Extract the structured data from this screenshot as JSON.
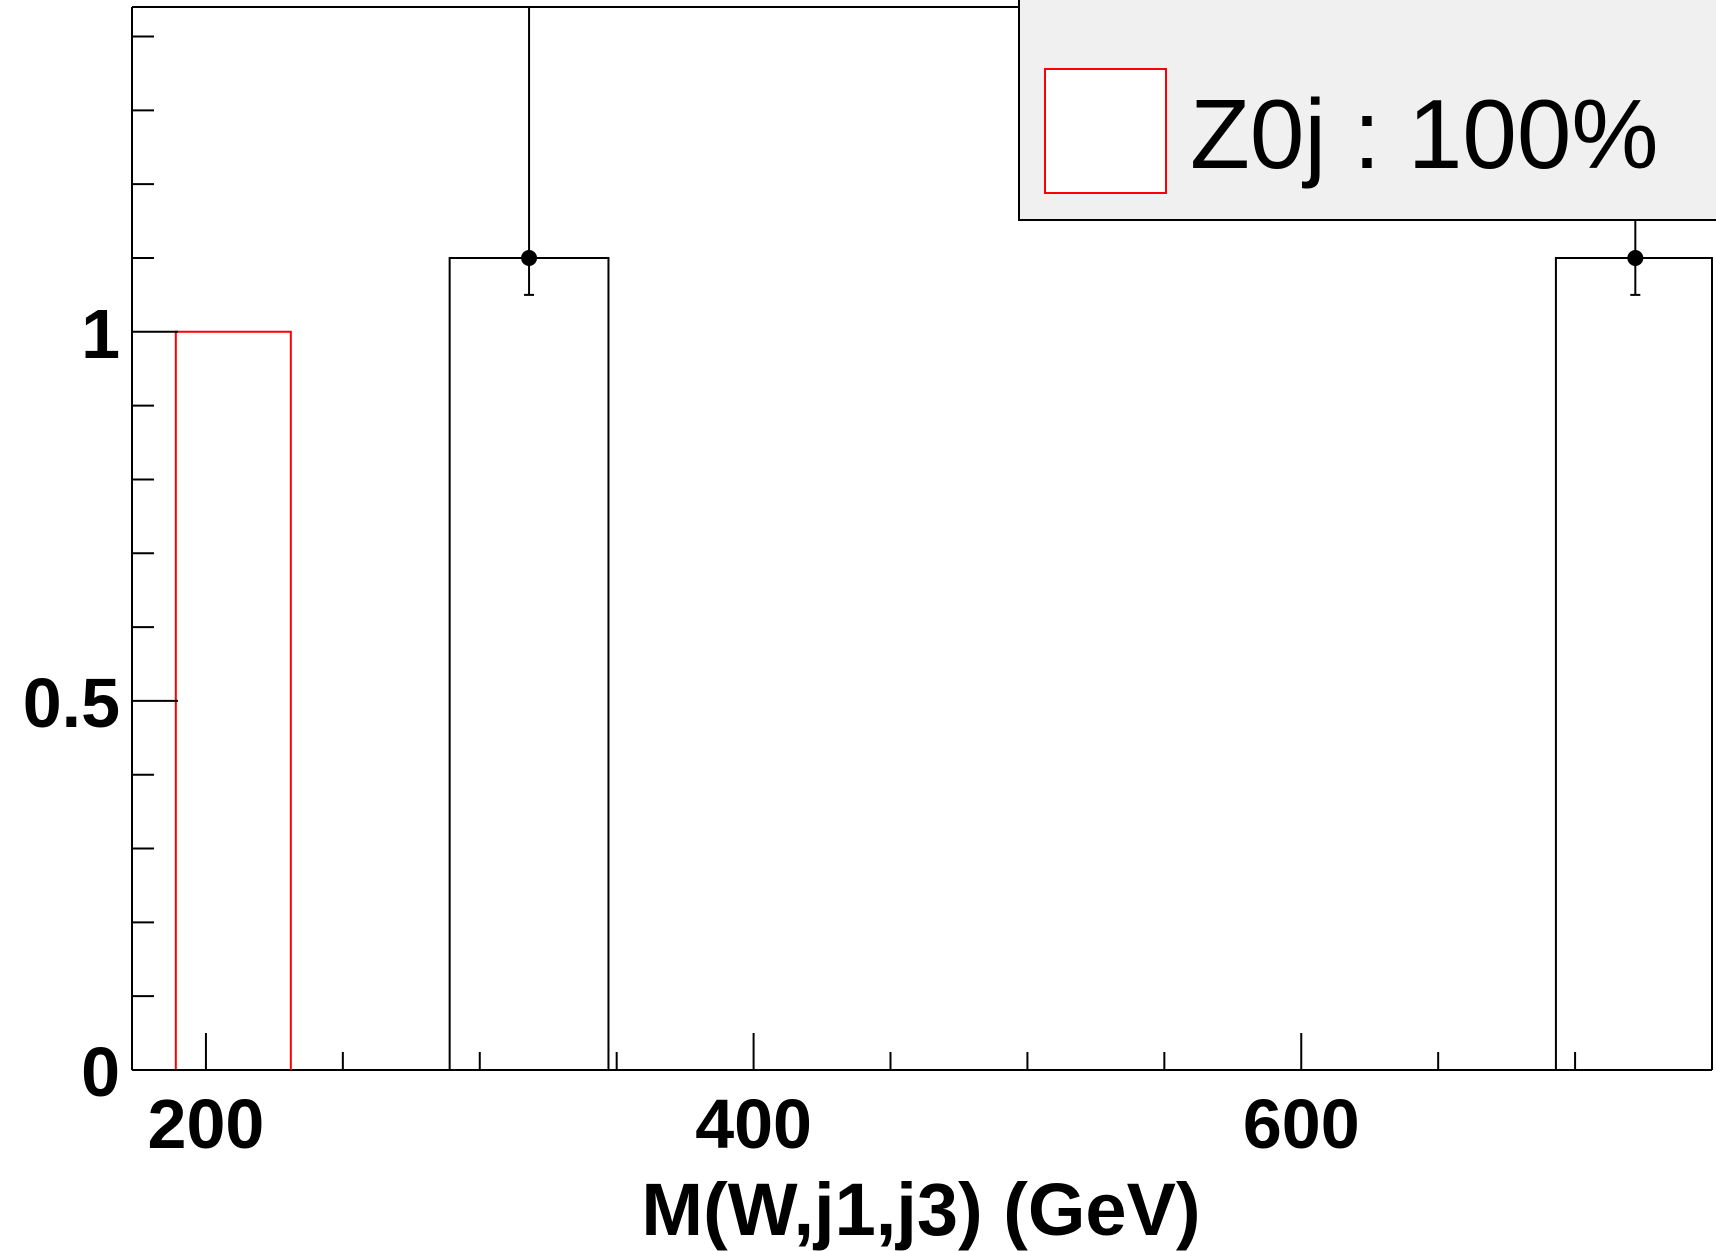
{
  "chart_data": {
    "type": "bar",
    "title": "",
    "xlabel": "M(W,j1,j3) (GeV)",
    "ylabel": "",
    "xlim": [
      173,
      750
    ],
    "ylim": [
      0,
      1.44
    ],
    "x_ticks": [
      200,
      400,
      600
    ],
    "y_ticks": [
      0,
      0.5,
      1
    ],
    "y_tick_labels": [
      "0",
      "0.5",
      "1"
    ],
    "x_tick_labels": [
      "200",
      "400",
      "600"
    ],
    "grid": false,
    "legend_position": "top-right",
    "series": [
      {
        "name": "Z0j : 100%",
        "kind": "histogram",
        "color": "#ff0000",
        "bins": [
          {
            "x0": 189,
            "x1": 231,
            "value": 1.0
          }
        ]
      },
      {
        "name": "",
        "kind": "histogram",
        "color": "#000000",
        "bins": [
          {
            "x0": 289,
            "x1": 347,
            "value": 1.1
          },
          {
            "x0": 693,
            "x1": 750,
            "value": 1.1
          }
        ]
      },
      {
        "name": "",
        "kind": "points",
        "color": "#000000",
        "points": [
          {
            "x": 318,
            "y": 1.1,
            "err_low": 1.05,
            "err_high": 1.44
          },
          {
            "x": 722,
            "y": 1.1,
            "err_low": 1.05,
            "err_high": 1.44
          }
        ]
      }
    ]
  },
  "legend": {
    "entry_label": "Z0j : 100%",
    "entry_color": "#ff0000",
    "background": "#f0f0f0"
  }
}
